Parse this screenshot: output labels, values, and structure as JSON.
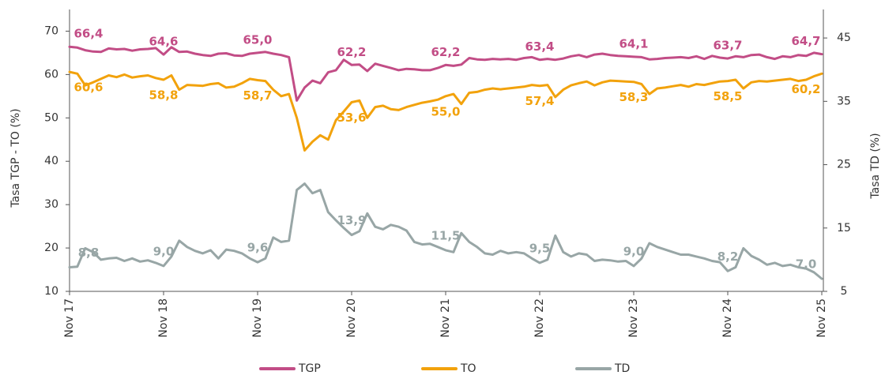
{
  "chart_data": {
    "type": "line",
    "categories": [
      "Nov 17",
      null,
      null,
      null,
      null,
      null,
      null,
      null,
      null,
      null,
      null,
      null,
      "Nov 18",
      null,
      null,
      null,
      null,
      null,
      null,
      null,
      null,
      null,
      null,
      null,
      "Nov 19",
      null,
      null,
      null,
      null,
      null,
      null,
      null,
      null,
      null,
      null,
      null,
      "Nov 20",
      null,
      null,
      null,
      null,
      null,
      null,
      null,
      null,
      null,
      null,
      null,
      "Nov 21",
      null,
      null,
      null,
      null,
      null,
      null,
      null,
      null,
      null,
      null,
      null,
      "Nov 22",
      null,
      null,
      null,
      null,
      null,
      null,
      null,
      null,
      null,
      null,
      null,
      "Nov 23",
      null,
      null,
      null,
      null,
      null,
      null,
      null,
      null,
      null,
      null,
      null,
      "Nov 24",
      null,
      null,
      null,
      null,
      null,
      null,
      null,
      null,
      null,
      null,
      null,
      "Nov 25"
    ],
    "series": [
      {
        "name": "TGP",
        "color": "#c24d86",
        "axis": "y",
        "values": [
          66.4,
          66.2,
          65.6,
          65.3,
          65.2,
          66.0,
          65.8,
          65.9,
          65.5,
          65.8,
          65.9,
          66.1,
          64.6,
          66.3,
          65.2,
          65.3,
          64.8,
          64.5,
          64.3,
          64.8,
          64.9,
          64.4,
          64.3,
          64.8,
          65.0,
          65.2,
          64.8,
          64.5,
          64.0,
          54.0,
          57.0,
          58.6,
          58.0,
          60.5,
          61.0,
          63.4,
          62.2,
          62.3,
          60.8,
          62.5,
          62.0,
          61.5,
          61.0,
          61.3,
          61.2,
          61.0,
          61.0,
          61.5,
          62.2,
          62.0,
          62.3,
          63.8,
          63.5,
          63.4,
          63.6,
          63.5,
          63.6,
          63.4,
          63.8,
          64.0,
          63.4,
          63.6,
          63.4,
          63.7,
          64.2,
          64.5,
          64.0,
          64.6,
          64.8,
          64.5,
          64.3,
          64.2,
          64.1,
          64.0,
          63.5,
          63.6,
          63.8,
          63.9,
          64.0,
          63.8,
          64.2,
          63.6,
          64.3,
          63.9,
          63.7,
          64.2,
          64.0,
          64.5,
          64.6,
          64.0,
          63.6,
          64.2,
          64.0,
          64.5,
          64.3,
          65.0,
          64.7
        ],
        "value_labels": [
          "66,4",
          null,
          null,
          null,
          null,
          null,
          null,
          null,
          null,
          null,
          null,
          null,
          "64,6",
          null,
          null,
          null,
          null,
          null,
          null,
          null,
          null,
          null,
          null,
          null,
          "65,0",
          null,
          null,
          null,
          null,
          null,
          null,
          null,
          null,
          null,
          null,
          null,
          "62,2",
          null,
          null,
          null,
          null,
          null,
          null,
          null,
          null,
          null,
          null,
          null,
          "62,2",
          null,
          null,
          null,
          null,
          null,
          null,
          null,
          null,
          null,
          null,
          null,
          "63,4",
          null,
          null,
          null,
          null,
          null,
          null,
          null,
          null,
          null,
          null,
          null,
          "64,1",
          null,
          null,
          null,
          null,
          null,
          null,
          null,
          null,
          null,
          null,
          null,
          "63,7",
          null,
          null,
          null,
          null,
          null,
          null,
          null,
          null,
          null,
          null,
          null,
          "64,7"
        ]
      },
      {
        "name": "TO",
        "color": "#f2a20c",
        "axis": "y",
        "values": [
          60.6,
          60.2,
          57.5,
          58.2,
          59.0,
          59.8,
          59.4,
          60.0,
          59.3,
          59.6,
          59.8,
          59.2,
          58.8,
          59.8,
          56.5,
          57.6,
          57.5,
          57.4,
          57.8,
          58.0,
          57.0,
          57.2,
          58.0,
          59.0,
          58.7,
          58.5,
          56.5,
          55.0,
          55.5,
          50.0,
          42.5,
          44.5,
          46.0,
          45.0,
          49.5,
          51.5,
          53.6,
          54.0,
          50.0,
          52.5,
          52.8,
          52.0,
          51.8,
          52.5,
          53.0,
          53.5,
          53.8,
          54.2,
          55.0,
          55.5,
          53.2,
          55.8,
          56.0,
          56.5,
          56.8,
          56.6,
          56.8,
          57.0,
          57.2,
          57.6,
          57.4,
          57.6,
          54.8,
          56.5,
          57.5,
          58.0,
          58.4,
          57.5,
          58.2,
          58.6,
          58.5,
          58.4,
          58.3,
          57.8,
          55.5,
          56.8,
          57.0,
          57.3,
          57.6,
          57.2,
          57.8,
          57.6,
          58.0,
          58.4,
          58.5,
          58.8,
          56.8,
          58.2,
          58.5,
          58.4,
          58.6,
          58.8,
          59.0,
          58.5,
          58.8,
          59.6,
          60.2
        ],
        "value_labels": [
          "60,6",
          null,
          null,
          null,
          null,
          null,
          null,
          null,
          null,
          null,
          null,
          null,
          "58,8",
          null,
          null,
          null,
          null,
          null,
          null,
          null,
          null,
          null,
          null,
          null,
          "58,7",
          null,
          null,
          null,
          null,
          null,
          null,
          null,
          null,
          null,
          null,
          null,
          "53,6",
          null,
          null,
          null,
          null,
          null,
          null,
          null,
          null,
          null,
          null,
          null,
          "55,0",
          null,
          null,
          null,
          null,
          null,
          null,
          null,
          null,
          null,
          null,
          null,
          "57,4",
          null,
          null,
          null,
          null,
          null,
          null,
          null,
          null,
          null,
          null,
          null,
          "58,3",
          null,
          null,
          null,
          null,
          null,
          null,
          null,
          null,
          null,
          null,
          null,
          "58,5",
          null,
          null,
          null,
          null,
          null,
          null,
          null,
          null,
          null,
          null,
          null,
          "60,2"
        ]
      },
      {
        "name": "TD",
        "color": "#98a6a6",
        "axis": "y2",
        "values": [
          8.8,
          8.9,
          11.8,
          11.2,
          10.0,
          10.2,
          10.3,
          9.8,
          10.2,
          9.7,
          9.9,
          9.5,
          9.0,
          10.5,
          13.0,
          12.0,
          11.4,
          11.0,
          11.5,
          10.2,
          11.6,
          11.4,
          11.0,
          10.2,
          9.6,
          10.2,
          13.5,
          12.8,
          13.0,
          21.0,
          22.0,
          20.5,
          21.0,
          17.5,
          16.2,
          15.0,
          13.9,
          14.5,
          17.3,
          15.2,
          14.8,
          15.5,
          15.2,
          14.6,
          12.8,
          12.4,
          12.5,
          12.0,
          11.5,
          11.2,
          14.2,
          12.8,
          12.0,
          11.0,
          10.8,
          11.4,
          11.0,
          11.2,
          11.0,
          10.2,
          9.5,
          10.0,
          13.8,
          11.2,
          10.5,
          11.0,
          10.8,
          9.8,
          10.0,
          9.9,
          9.7,
          9.8,
          9.0,
          10.2,
          12.6,
          12.0,
          11.6,
          11.2,
          10.8,
          10.8,
          10.5,
          10.2,
          9.8,
          9.6,
          8.2,
          8.8,
          11.8,
          10.6,
          10.0,
          9.2,
          9.5,
          9.0,
          9.2,
          8.8,
          8.6,
          8.0,
          7.0
        ],
        "value_labels": [
          "8,8",
          null,
          null,
          null,
          null,
          null,
          null,
          null,
          null,
          null,
          null,
          null,
          "9,0",
          null,
          null,
          null,
          null,
          null,
          null,
          null,
          null,
          null,
          null,
          null,
          "9,6",
          null,
          null,
          null,
          null,
          null,
          null,
          null,
          null,
          null,
          null,
          null,
          "13,9",
          null,
          null,
          null,
          null,
          null,
          null,
          null,
          null,
          null,
          null,
          null,
          "11,5",
          null,
          null,
          null,
          null,
          null,
          null,
          null,
          null,
          null,
          null,
          null,
          "9,5",
          null,
          null,
          null,
          null,
          null,
          null,
          null,
          null,
          null,
          null,
          null,
          "9,0",
          null,
          null,
          null,
          null,
          null,
          null,
          null,
          null,
          null,
          null,
          null,
          "8,2",
          null,
          null,
          null,
          null,
          null,
          null,
          null,
          null,
          null,
          null,
          null,
          "7,0"
        ]
      }
    ],
    "y_label": "Tasa TGP - TO (%)",
    "y2_label": "Tasa TD (%)",
    "ylim": [
      10,
      75
    ],
    "yticks": [
      10,
      20,
      30,
      40,
      50,
      60,
      70
    ],
    "y2lim": [
      5,
      49.5
    ],
    "y2ticks": [
      5,
      15,
      25,
      35,
      45
    ],
    "grid": false,
    "legend": "bottom"
  }
}
